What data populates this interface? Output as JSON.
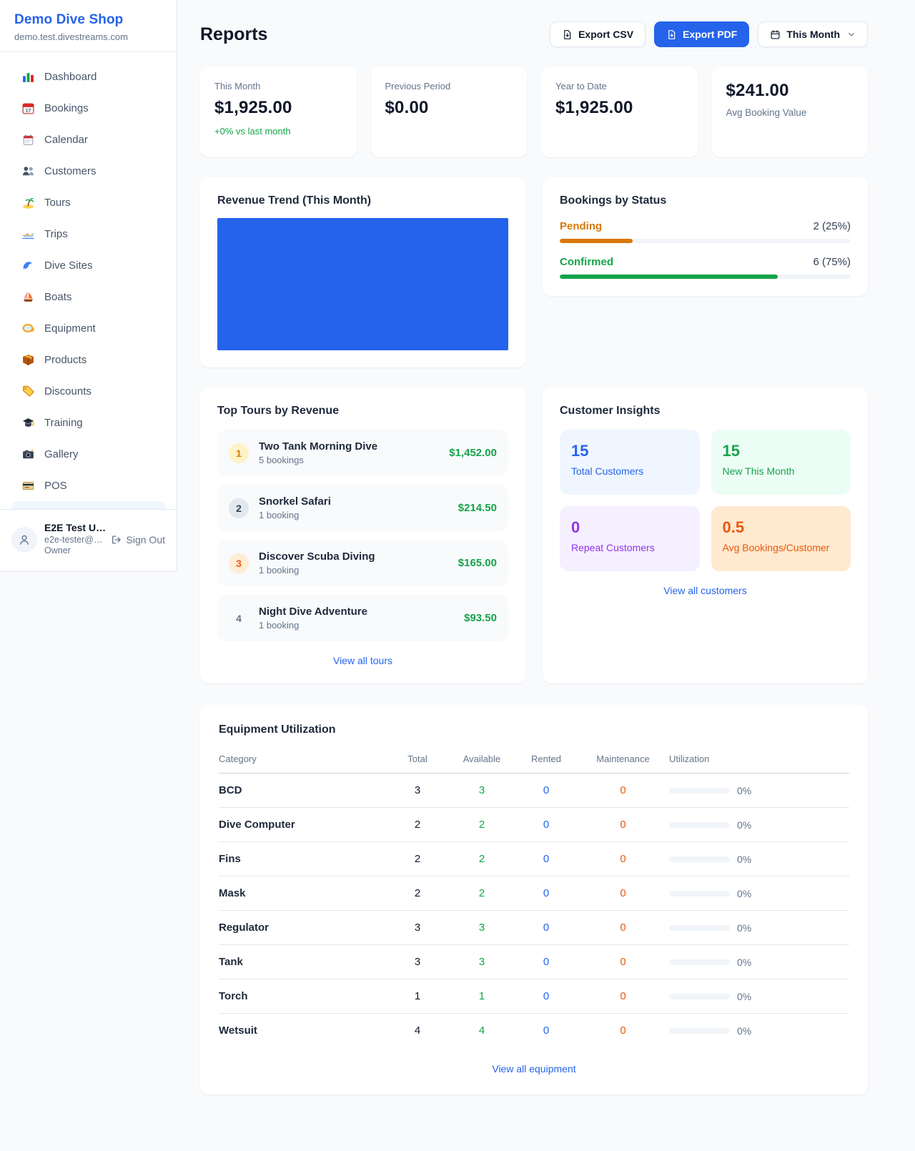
{
  "colors": {
    "brand_blue": "#2563eb",
    "green": "#16a34a",
    "orange_pending": "#d97706",
    "orange_deep": "#ea580c",
    "purple": "#9333ea",
    "page_bg": "#f8fafc"
  },
  "sidebar": {
    "shop_name": "Demo Dive Shop",
    "shop_domain": "demo.test.divestreams.com",
    "nav": [
      {
        "label": "Dashboard",
        "icon": "bar-chart-icon"
      },
      {
        "label": "Bookings",
        "icon": "calendar-date-icon"
      },
      {
        "label": "Calendar",
        "icon": "calendar-pad-icon"
      },
      {
        "label": "Customers",
        "icon": "people-icon"
      },
      {
        "label": "Tours",
        "icon": "palm-island-icon"
      },
      {
        "label": "Trips",
        "icon": "speedboat-icon"
      },
      {
        "label": "Dive Sites",
        "icon": "wave-icon"
      },
      {
        "label": "Boats",
        "icon": "sailboat-icon"
      },
      {
        "label": "Equipment",
        "icon": "dive-mask-icon"
      },
      {
        "label": "Products",
        "icon": "package-icon"
      },
      {
        "label": "Discounts",
        "icon": "tag-icon"
      },
      {
        "label": "Training",
        "icon": "grad-cap-icon"
      },
      {
        "label": "Gallery",
        "icon": "camera-icon"
      },
      {
        "label": "POS",
        "icon": "credit-card-icon"
      }
    ],
    "user": {
      "name": "E2E Test U…",
      "email": "e2e-tester@…",
      "role": "Owner",
      "sign_out_label": "Sign Out"
    }
  },
  "header": {
    "title": "Reports",
    "export_csv_label": "Export CSV",
    "export_pdf_label": "Export PDF",
    "period_label": "This Month"
  },
  "stats": [
    {
      "label": "This Month",
      "value": "$1,925.00",
      "delta": "+0% vs last month"
    },
    {
      "label": "Previous Period",
      "value": "$0.00"
    },
    {
      "label": "Year to Date",
      "value": "$1,925.00"
    },
    {
      "label": "Avg Booking Value",
      "value": "$241.00"
    }
  ],
  "revenue_trend": {
    "title": "Revenue Trend (This Month)",
    "bar_color": "#2563eb"
  },
  "bookings_status": {
    "title": "Bookings by Status",
    "items": [
      {
        "label": "Pending",
        "count_text": "2 (25%)",
        "pct": "25%",
        "color": "#d97706"
      },
      {
        "label": "Confirmed",
        "count_text": "6 (75%)",
        "pct": "75%",
        "color": "#16a34a"
      }
    ]
  },
  "top_tours": {
    "title": "Top Tours by Revenue",
    "view_all_label": "View all tours",
    "items": [
      {
        "rank": "1",
        "name": "Two Tank Morning Dive",
        "bookings": "5 bookings",
        "amount": "$1,452.00"
      },
      {
        "rank": "2",
        "name": "Snorkel Safari",
        "bookings": "1 booking",
        "amount": "$214.50"
      },
      {
        "rank": "3",
        "name": "Discover Scuba Diving",
        "bookings": "1 booking",
        "amount": "$165.00"
      },
      {
        "rank": "4",
        "name": "Night Dive Adventure",
        "bookings": "1 booking",
        "amount": "$93.50"
      }
    ]
  },
  "customer_insights": {
    "title": "Customer Insights",
    "view_all_label": "View all customers",
    "tiles": [
      {
        "value": "15",
        "label": "Total Customers",
        "color": "#2563eb"
      },
      {
        "value": "15",
        "label": "New This Month",
        "color": "#16a34a"
      },
      {
        "value": "0",
        "label": "Repeat Customers",
        "color": "#9333ea"
      },
      {
        "value": "0.5",
        "label": "Avg Bookings/Customer",
        "color": "#ea580c"
      }
    ]
  },
  "equipment": {
    "title": "Equipment Utilization",
    "view_all_label": "View all equipment",
    "columns": [
      "Category",
      "Total",
      "Available",
      "Rented",
      "Maintenance",
      "Utilization"
    ],
    "rows": [
      {
        "category": "BCD",
        "total": "3",
        "available": "3",
        "rented": "0",
        "maintenance": "0",
        "utilization": "0%"
      },
      {
        "category": "Dive Computer",
        "total": "2",
        "available": "2",
        "rented": "0",
        "maintenance": "0",
        "utilization": "0%"
      },
      {
        "category": "Fins",
        "total": "2",
        "available": "2",
        "rented": "0",
        "maintenance": "0",
        "utilization": "0%"
      },
      {
        "category": "Mask",
        "total": "2",
        "available": "2",
        "rented": "0",
        "maintenance": "0",
        "utilization": "0%"
      },
      {
        "category": "Regulator",
        "total": "3",
        "available": "3",
        "rented": "0",
        "maintenance": "0",
        "utilization": "0%"
      },
      {
        "category": "Tank",
        "total": "3",
        "available": "3",
        "rented": "0",
        "maintenance": "0",
        "utilization": "0%"
      },
      {
        "category": "Torch",
        "total": "1",
        "available": "1",
        "rented": "0",
        "maintenance": "0",
        "utilization": "0%"
      },
      {
        "category": "Wetsuit",
        "total": "4",
        "available": "4",
        "rented": "0",
        "maintenance": "0",
        "utilization": "0%"
      }
    ]
  }
}
